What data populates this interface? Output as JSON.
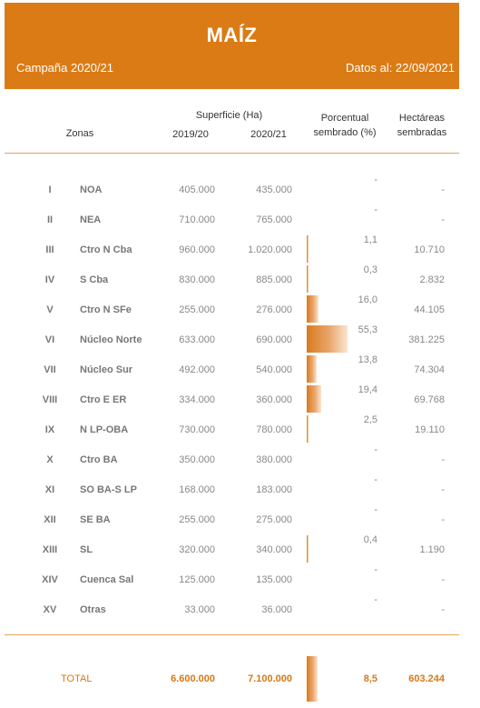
{
  "header": {
    "title": "MAÍZ",
    "campaign": "Campaña 2020/21",
    "date": "Datos al: 22/09/2021"
  },
  "columns": {
    "zonas": "Zonas",
    "superficie": "Superficie (Ha)",
    "year1": "2019/20",
    "year2": "2020/21",
    "porcentual_1": "Porcentual",
    "porcentual_2": "sembrado (%)",
    "hectareas_1": "Hectáreas",
    "hectareas_2": "sembradas"
  },
  "rows": [
    {
      "num": "I",
      "zona": "NOA",
      "sup_2019": "405.000",
      "sup_2020": "435.000",
      "pct": "-",
      "pct_value": 0,
      "hectareas": "-"
    },
    {
      "num": "II",
      "zona": "NEA",
      "sup_2019": "710.000",
      "sup_2020": "765.000",
      "pct": "-",
      "pct_value": 0,
      "hectareas": "-"
    },
    {
      "num": "III",
      "zona": "Ctro N Cba",
      "sup_2019": "960.000",
      "sup_2020": "1.020.000",
      "pct": "1,1",
      "pct_value": 1.1,
      "hectareas": "10.710"
    },
    {
      "num": "IV",
      "zona": "S Cba",
      "sup_2019": "830.000",
      "sup_2020": "885.000",
      "pct": "0,3",
      "pct_value": 0.3,
      "hectareas": "2.832"
    },
    {
      "num": "V",
      "zona": "Ctro N SFe",
      "sup_2019": "255.000",
      "sup_2020": "276.000",
      "pct": "16,0",
      "pct_value": 16.0,
      "hectareas": "44.105"
    },
    {
      "num": "VI",
      "zona": "Núcleo Norte",
      "sup_2019": "633.000",
      "sup_2020": "690.000",
      "pct": "55,3",
      "pct_value": 55.3,
      "hectareas": "381.225"
    },
    {
      "num": "VII",
      "zona": "Núcleo Sur",
      "sup_2019": "492.000",
      "sup_2020": "540.000",
      "pct": "13,8",
      "pct_value": 13.8,
      "hectareas": "74.304"
    },
    {
      "num": "VIII",
      "zona": "Ctro E ER",
      "sup_2019": "334.000",
      "sup_2020": "360.000",
      "pct": "19,4",
      "pct_value": 19.4,
      "hectareas": "69.768"
    },
    {
      "num": "IX",
      "zona": "N LP-OBA",
      "sup_2019": "730.000",
      "sup_2020": "780.000",
      "pct": "2,5",
      "pct_value": 2.5,
      "hectareas": "19.110"
    },
    {
      "num": "X",
      "zona": "Ctro BA",
      "sup_2019": "350.000",
      "sup_2020": "380.000",
      "pct": "-",
      "pct_value": 0,
      "hectareas": "-"
    },
    {
      "num": "XI",
      "zona": "SO BA-S LP",
      "sup_2019": "168.000",
      "sup_2020": "183.000",
      "pct": "-",
      "pct_value": 0,
      "hectareas": "-"
    },
    {
      "num": "XII",
      "zona": "SE BA",
      "sup_2019": "255.000",
      "sup_2020": "275.000",
      "pct": "-",
      "pct_value": 0,
      "hectareas": "-"
    },
    {
      "num": "XIII",
      "zona": "SL",
      "sup_2019": "320.000",
      "sup_2020": "340.000",
      "pct": "0,4",
      "pct_value": 0.4,
      "hectareas": "1.190"
    },
    {
      "num": "XIV",
      "zona": "Cuenca Sal",
      "sup_2019": "125.000",
      "sup_2020": "135.000",
      "pct": "-",
      "pct_value": 0,
      "hectareas": "-"
    },
    {
      "num": "XV",
      "zona": "Otras",
      "sup_2019": "33.000",
      "sup_2020": "36.000",
      "pct": "-",
      "pct_value": 0,
      "hectareas": "-"
    }
  ],
  "total": {
    "label": "TOTAL",
    "sup_2019": "6.600.000",
    "sup_2020": "7.100.000",
    "pct": "8,5",
    "pct_value": 8.5,
    "hectareas": "603.244"
  },
  "colors": {
    "accent": "#db7b16",
    "total_text": "#d77816"
  }
}
